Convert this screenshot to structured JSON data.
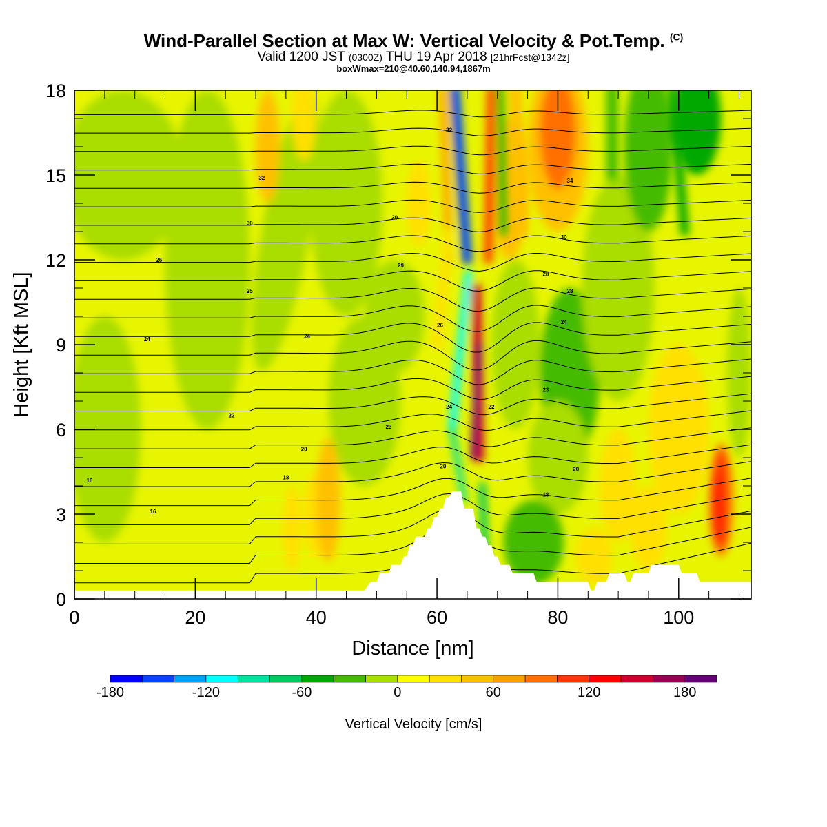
{
  "header": {
    "title": "Wind-Parallel Section at Max W: Vertical Velocity & Pot.Temp.",
    "copyright": "(C)",
    "valid_prefix": "Valid 1200 JST",
    "valid_utc": "(0300Z)",
    "valid_date": "THU 19 Apr 2018",
    "forecast": "[21hrFcst@1342z]",
    "box_info": "boxWmax=210@40.60,140.94,1867m"
  },
  "chart_data": {
    "type": "heatmap",
    "xlabel": "Distance [nm]",
    "ylabel": "Height [Kft MSL]",
    "xlim": [
      0,
      112
    ],
    "ylim": [
      0,
      18
    ],
    "xticks": [
      "0",
      "20",
      "40",
      "60",
      "80",
      "100"
    ],
    "yticks": [
      "0",
      "3",
      "6",
      "9",
      "12",
      "15",
      "18"
    ],
    "colorbar": {
      "title": "Vertical Velocity [cm/s]",
      "tick_labels": [
        "-180",
        "-120",
        "-60",
        "0",
        "60",
        "120",
        "180"
      ],
      "levels": [
        -180,
        -160,
        -140,
        -120,
        -100,
        -80,
        -60,
        -40,
        -20,
        0,
        20,
        40,
        60,
        80,
        100,
        120,
        140,
        160,
        180,
        200
      ],
      "colors": [
        "#0000ff",
        "#0044ff",
        "#00a0ff",
        "#00ffff",
        "#00e0a0",
        "#00c860",
        "#00a800",
        "#44bb00",
        "#aadd00",
        "#ffff00",
        "#ffe000",
        "#ffc000",
        "#ffa000",
        "#ff7000",
        "#ff3800",
        "#ff0000",
        "#cc0030",
        "#990055",
        "#660077"
      ]
    },
    "terrain_kft": [
      [
        0,
        0.3
      ],
      [
        48,
        0.3
      ],
      [
        49,
        0.6
      ],
      [
        50,
        0.6
      ],
      [
        50.5,
        0.9
      ],
      [
        52,
        0.9
      ],
      [
        52.5,
        1.2
      ],
      [
        54,
        1.2
      ],
      [
        54.5,
        1.5
      ],
      [
        55,
        1.5
      ],
      [
        55.5,
        1.9
      ],
      [
        56,
        1.9
      ],
      [
        56.5,
        2.2
      ],
      [
        58,
        2.2
      ],
      [
        58.5,
        2.5
      ],
      [
        59,
        2.5
      ],
      [
        59.5,
        2.9
      ],
      [
        60,
        2.9
      ],
      [
        60.5,
        3.2
      ],
      [
        61,
        3.2
      ],
      [
        61.5,
        3.6
      ],
      [
        62,
        3.6
      ],
      [
        62.5,
        3.8
      ],
      [
        63.5,
        3.8
      ],
      [
        64,
        3.8
      ],
      [
        64.5,
        3.2
      ],
      [
        66,
        3.2
      ],
      [
        66.5,
        2.5
      ],
      [
        67,
        2.5
      ],
      [
        67.5,
        2.2
      ],
      [
        68,
        2.2
      ],
      [
        68.5,
        1.9
      ],
      [
        69,
        1.9
      ],
      [
        69.5,
        1.5
      ],
      [
        70,
        1.5
      ],
      [
        70.5,
        1.2
      ],
      [
        72,
        1.2
      ],
      [
        72.5,
        0.9
      ],
      [
        76,
        0.9
      ],
      [
        76.5,
        0.6
      ],
      [
        85,
        0.6
      ],
      [
        85.5,
        0.3
      ],
      [
        86,
        0.3
      ],
      [
        86.5,
        0.6
      ],
      [
        88,
        0.6
      ],
      [
        88.5,
        0.9
      ],
      [
        91,
        0.9
      ],
      [
        91.5,
        0.6
      ],
      [
        92,
        0.6
      ],
      [
        92.5,
        0.9
      ],
      [
        95,
        0.9
      ],
      [
        95.5,
        1.2
      ],
      [
        100,
        1.2
      ],
      [
        100.5,
        0.9
      ],
      [
        103,
        0.9
      ],
      [
        103.5,
        0.6
      ],
      [
        112,
        0.6
      ]
    ],
    "theta_labels": [
      {
        "x": 2.5,
        "y": 4.2,
        "text": "16"
      },
      {
        "x": 13,
        "y": 3.1,
        "text": "16"
      },
      {
        "x": 35,
        "y": 4.3,
        "text": "18"
      },
      {
        "x": 38,
        "y": 5.3,
        "text": "20"
      },
      {
        "x": 26,
        "y": 6.5,
        "text": "22"
      },
      {
        "x": 52,
        "y": 6.1,
        "text": "23"
      },
      {
        "x": 12,
        "y": 9.2,
        "text": "24"
      },
      {
        "x": 38.5,
        "y": 9.3,
        "text": "24"
      },
      {
        "x": 29,
        "y": 10.9,
        "text": "25"
      },
      {
        "x": 14,
        "y": 12.0,
        "text": "26"
      },
      {
        "x": 29,
        "y": 13.3,
        "text": "30"
      },
      {
        "x": 53,
        "y": 13.5,
        "text": "30"
      },
      {
        "x": 54,
        "y": 11.8,
        "text": "29"
      },
      {
        "x": 31,
        "y": 14.9,
        "text": "32"
      },
      {
        "x": 62,
        "y": 16.6,
        "text": "32"
      },
      {
        "x": 60.5,
        "y": 9.7,
        "text": "26"
      },
      {
        "x": 62,
        "y": 6.8,
        "text": "24"
      },
      {
        "x": 61,
        "y": 4.7,
        "text": "20"
      },
      {
        "x": 69,
        "y": 6.8,
        "text": "22"
      },
      {
        "x": 78,
        "y": 7.4,
        "text": "23"
      },
      {
        "x": 78,
        "y": 11.5,
        "text": "28"
      },
      {
        "x": 82,
        "y": 10.9,
        "text": "28"
      },
      {
        "x": 81,
        "y": 9.8,
        "text": "24"
      },
      {
        "x": 81,
        "y": 12.8,
        "text": "30"
      },
      {
        "x": 82,
        "y": 14.8,
        "text": "34"
      },
      {
        "x": 83,
        "y": 4.6,
        "text": "20"
      },
      {
        "x": 78,
        "y": 3.7,
        "text": "18"
      }
    ]
  }
}
